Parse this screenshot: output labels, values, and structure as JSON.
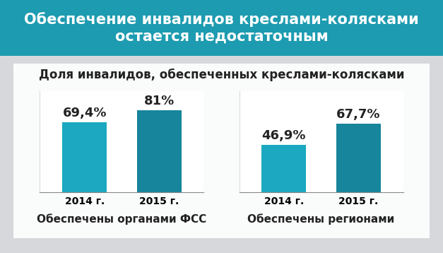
{
  "title": "Обеспечение инвалидов креслами-колясками остается недостаточным",
  "subtitle": "Доля инвалидов, обеспеченных креслами-колясками",
  "chart_data": [
    {
      "type": "bar",
      "xlabel": "Обеспечены органами ФСС",
      "categories": [
        "2014 г.",
        "2015 г."
      ],
      "values": [
        69.4,
        81
      ],
      "value_labels": [
        "69,4%",
        "81%"
      ],
      "colors": [
        "#1ba8c0",
        "#17859b"
      ],
      "ylim": [
        0,
        100
      ],
      "yticks": [],
      "data_labels": true,
      "tick_labels": "x"
    },
    {
      "type": "bar",
      "xlabel": "Обеспечены регионами",
      "categories": [
        "2014 г.",
        "2015 г."
      ],
      "values": [
        46.9,
        67.7
      ],
      "value_labels": [
        "46,9%",
        "67,7%"
      ],
      "colors": [
        "#1ba8c0",
        "#17859b"
      ],
      "ylim": [
        0,
        100
      ],
      "yticks": [],
      "data_labels": true,
      "tick_labels": "x"
    }
  ]
}
